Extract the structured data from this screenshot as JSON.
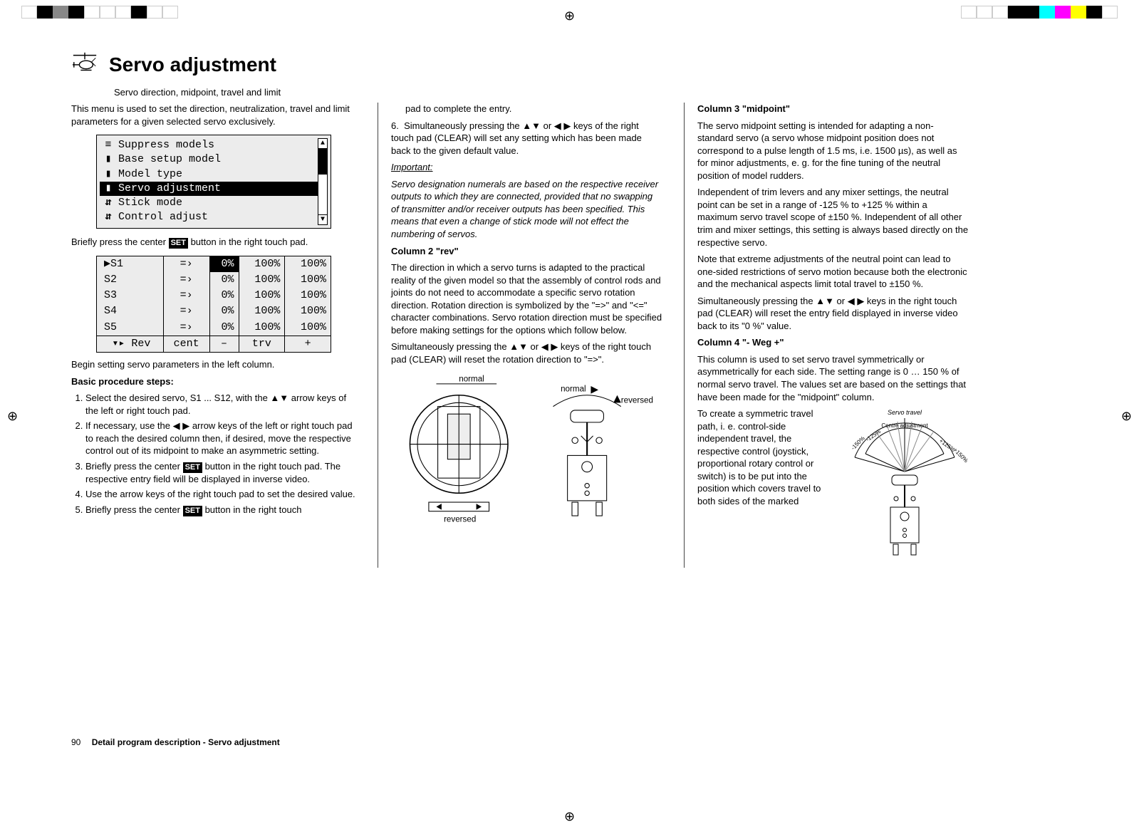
{
  "title": "Servo adjustment",
  "subtitle": "Servo direction, midpoint, travel and limit",
  "col1": {
    "intro": "This menu is used to set the direction, neutralization, travel and limit parameters for a given selected servo exclusively.",
    "menu": {
      "items": [
        {
          "icon": "≡",
          "label": "Suppress models"
        },
        {
          "icon": "▮",
          "label": "Base setup model"
        },
        {
          "icon": "▮",
          "label": "Model type"
        },
        {
          "icon": "▮",
          "label": "Servo adjustment",
          "selected": true
        },
        {
          "icon": "⇵",
          "label": "Stick mode"
        },
        {
          "icon": "⇵",
          "label": "Control adjust"
        }
      ]
    },
    "after_menu_a": "Briefly press the center ",
    "after_menu_b": " button in the right touch pad.",
    "servotable": {
      "rows": [
        {
          "s": "▶S1",
          "dir": "=›",
          "mid": "0%",
          "tn": "100%",
          "tp": "100%",
          "sel": true
        },
        {
          "s": "S2",
          "dir": "=›",
          "mid": "0%",
          "tn": "100%",
          "tp": "100%"
        },
        {
          "s": "S3",
          "dir": "=›",
          "mid": "0%",
          "tn": "100%",
          "tp": "100%"
        },
        {
          "s": "S4",
          "dir": "=›",
          "mid": "0%",
          "tn": "100%",
          "tp": "100%"
        },
        {
          "s": "S5",
          "dir": "=›",
          "mid": "0%",
          "tn": "100%",
          "tp": "100%"
        }
      ],
      "footer": {
        "a": "▾▸ Rev",
        "b": "cent",
        "c": "–",
        "d": "trv",
        "e": "+"
      }
    },
    "after_table": "Begin setting servo parameters in the left column.",
    "steps_title": "Basic procedure steps:",
    "steps": [
      "Select the desired servo, S1 ... S12, with the ▲▼ arrow keys of the left or right touch pad.",
      "If necessary, use the ◀ ▶ arrow keys of the left or right touch pad to reach the desired column then, if desired, move the respective control out of its midpoint to make an asymmetric setting.",
      "Briefly press the center SET button in the right touch pad. The respective entry field will be displayed in inverse video.",
      "Use the arrow keys of the right touch pad to set the desired value.",
      "Briefly press the center SET button in the right touch"
    ]
  },
  "col2": {
    "cont5": "pad to complete the entry.",
    "step6": "Simultaneously pressing the ▲▼ or ◀ ▶ keys of the right touch pad (CLEAR) will set any setting which has been made back to the given default value.",
    "important_label": "Important:",
    "important_text": "Servo designation numerals are based on the respective receiver outputs to which they are connected, provided that no swapping of transmitter and/or receiver outputs has been specified. This means that even a change of stick mode will not effect the numbering of servos.",
    "h_rev": "Column 2 \"rev\"",
    "rev_p1": "The direction in which a servo turns is adapted to the practical reality of the given model so that the assembly of control rods and joints do not need to accommodate a specific servo rotation direction. Rotation direction is symbolized by the \"=>\" and \"<=\" character combinations. Servo rotation direction must be specified before making settings for the options which follow below.",
    "rev_p2": "Simultaneously pressing the ▲▼ or ◀ ▶ keys of the right touch pad (CLEAR) will reset the rotation direction to \"=>\".",
    "labels": {
      "normal": "normal",
      "reversed": "reversed"
    }
  },
  "col3": {
    "h_mid": "Column 3 \"midpoint\"",
    "mid_p1": "The servo midpoint setting is intended for adapting a non-standard servo (a servo whose midpoint position does not correspond to a pulse length of 1.5 ms, i.e. 1500 µs), as well as for minor adjustments, e. g. for the fine tuning of the neutral position of model rudders.",
    "mid_p2": "Independent of trim levers and any mixer settings, the neutral point can be set in a range of -125 % to +125 % within a maximum servo travel scope of ±150 %. Independent of all other trim and mixer settings, this setting is always based directly on the respective servo.",
    "mid_p3": "Note that extreme adjustments of the neutral point can lead to one-sided restrictions of servo motion because both the electronic and the mechanical aspects limit total travel to ±150 %.",
    "mid_p4": "Simultaneously pressing the ▲▼ or ◀ ▶ keys in the right touch pad (CLEAR) will reset the entry field displayed in inverse video back to its \"0 %\" value.",
    "h_weg": "Column 4 \"- Weg +\"",
    "weg_p1": "This column is used to set servo travel symmetrically or asymmetrically for each side. The setting range is 0 … 150 % of normal servo travel. The values set are based on the settings that have been made for the \"midpoint\" column.",
    "weg_p2": "To create a symmetric travel path, i. e. control-side independent travel, the respective control (joystick, proportional rotary control or switch) is to be put into the position which covers travel to both sides of the marked",
    "arc": {
      "travel": "Servo travel",
      "m150": "-150%",
      "m125": "-125%",
      "centre": "Centre adjustment",
      "p125": "+125%",
      "p150": "+150%"
    }
  },
  "footer": {
    "page": "90",
    "title": "Detail program description - Servo adjustment"
  }
}
